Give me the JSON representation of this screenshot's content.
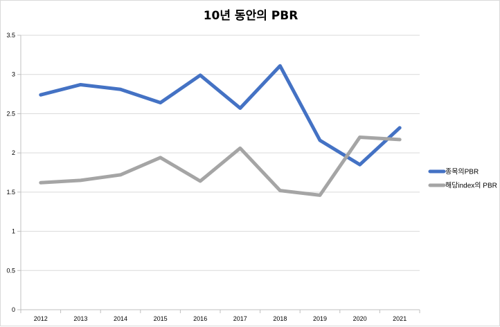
{
  "chart_data": {
    "type": "line",
    "title": "10년 동안의 PBR",
    "categories": [
      "2012",
      "2013",
      "2014",
      "2015",
      "2016",
      "2017",
      "2018",
      "2019",
      "2020",
      "2021"
    ],
    "series": [
      {
        "name": "종목의PBR",
        "color": "#4472c4",
        "values": [
          2.74,
          2.87,
          2.81,
          2.64,
          2.99,
          2.57,
          3.11,
          2.16,
          1.85,
          2.32
        ]
      },
      {
        "name": "해당index의 PBR",
        "color": "#a5a5a5",
        "values": [
          1.62,
          1.65,
          1.72,
          1.94,
          1.64,
          2.06,
          1.52,
          1.46,
          2.2,
          2.17
        ]
      }
    ],
    "y_ticks": [
      "0",
      "0.5",
      "1",
      "1.5",
      "2",
      "2.5",
      "3",
      "3.5"
    ],
    "ylim": [
      0,
      3.5
    ],
    "grid": true,
    "legend_position": "right"
  }
}
